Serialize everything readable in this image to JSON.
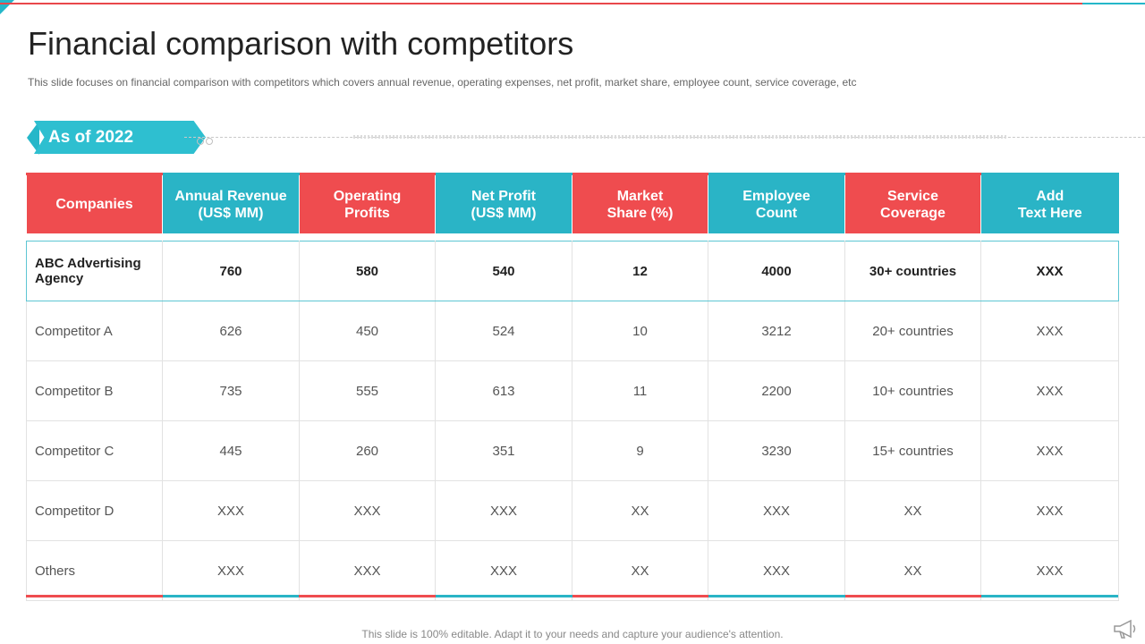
{
  "title": "Financial comparison with competitors",
  "subtitle": "This slide focuses on financial comparison with competitors which covers annual revenue, operating expenses, net profit, market share, employee count, service coverage, etc",
  "tag": "As of 2022",
  "colors": {
    "red": "#ef4c4f",
    "teal": "#2ab4c6"
  },
  "headers": [
    {
      "label": "Companies",
      "color": "red"
    },
    {
      "label": "Annual Revenue\n(US$ MM)",
      "color": "teal"
    },
    {
      "label": "Operating\nProfits",
      "color": "red"
    },
    {
      "label": "Net Profit\n(US$ MM)",
      "color": "teal"
    },
    {
      "label": "Market\nShare (%)",
      "color": "red"
    },
    {
      "label": "Employee\nCount",
      "color": "teal"
    },
    {
      "label": "Service\nCoverage",
      "color": "red"
    },
    {
      "label": "Add\nText Here",
      "color": "teal"
    }
  ],
  "rows": [
    [
      "ABC Advertising Agency",
      "760",
      "580",
      "540",
      "12",
      "4000",
      "30+ countries",
      "XXX"
    ],
    [
      "Competitor A",
      "626",
      "450",
      "524",
      "10",
      "3212",
      "20+ countries",
      "XXX"
    ],
    [
      "Competitor B",
      "735",
      "555",
      "613",
      "11",
      "2200",
      "10+ countries",
      "XXX"
    ],
    [
      "Competitor C",
      "445",
      "260",
      "351",
      "9",
      "3230",
      "15+ countries",
      "XXX"
    ],
    [
      "Competitor D",
      "XXX",
      "XXX",
      "XXX",
      "XX",
      "XXX",
      "XX",
      "XXX"
    ],
    [
      "Others",
      "XXX",
      "XXX",
      "XXX",
      "XX",
      "XXX",
      "XX",
      "XXX"
    ]
  ],
  "footer": "This slide is 100% editable. Adapt it to your needs and capture your audience's attention.",
  "icons": {
    "corner_mark": "megaphone-icon"
  }
}
